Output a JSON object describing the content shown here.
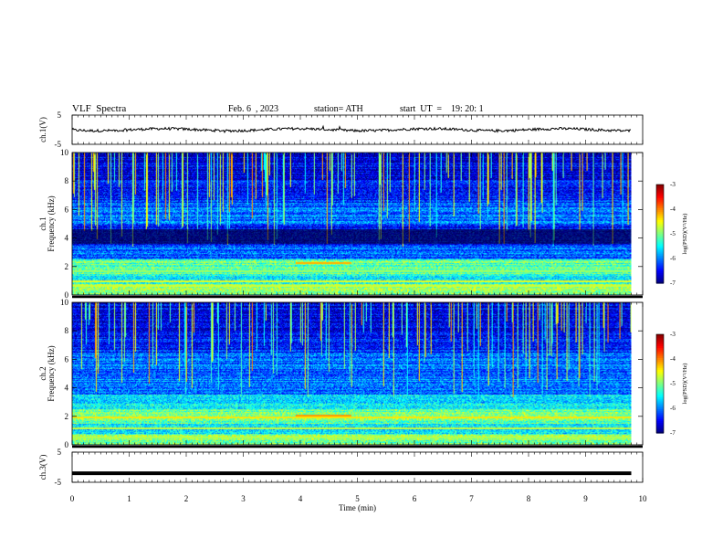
{
  "header": {
    "title": "VLF  Spectra",
    "date": "Feb. 6  , 2023",
    "station": "station= ATH",
    "start": "start  UT  =    19: 20: 1"
  },
  "chart_data": [
    {
      "type": "line",
      "name": "ch1-waveform",
      "ylabel": "ch.1(V)",
      "ylim": [
        -5,
        5
      ],
      "yticks": [
        5,
        -5
      ],
      "xlim": [
        0,
        10
      ],
      "baseline": 0,
      "extent_min": 9.8
    },
    {
      "type": "heatmap",
      "name": "ch1-spectrogram",
      "ylabel": "ch.1\nFrequency  (kHz)",
      "ylim": [
        0,
        10
      ],
      "yticks": [
        0,
        2,
        4,
        6,
        8,
        10
      ],
      "xlim": [
        0,
        10
      ],
      "extent_min": 9.8,
      "colorbar": {
        "label": "log(PSD)(V²/Hz)",
        "ticks": [
          -3,
          -4,
          -5,
          -6,
          -7
        ],
        "range": [
          -7,
          -3
        ]
      }
    },
    {
      "type": "heatmap",
      "name": "ch2-spectrogram",
      "ylabel": "ch.2\nFrequency  (kHz)",
      "ylim": [
        0,
        10
      ],
      "yticks": [
        0,
        2,
        4,
        6,
        8,
        10
      ],
      "xlim": [
        0,
        10
      ],
      "extent_min": 9.8,
      "colorbar": {
        "label": "log(PSD)(V²/Hz)",
        "ticks": [
          -3,
          -4,
          -5,
          -6,
          -7
        ],
        "range": [
          -7,
          -3
        ]
      }
    },
    {
      "type": "line",
      "name": "ch3-waveform",
      "ylabel": "ch.3(V)",
      "ylim": [
        -5,
        5
      ],
      "yticks": [
        5,
        -5
      ],
      "xlim": [
        0,
        10
      ],
      "baseline": -2,
      "extent_min": 9.8
    }
  ],
  "xaxis": {
    "label": "Time  (min)",
    "ticks": [
      "0",
      "1",
      "2",
      "3",
      "4",
      "5",
      "6",
      "7",
      "8",
      "9",
      "10"
    ]
  }
}
